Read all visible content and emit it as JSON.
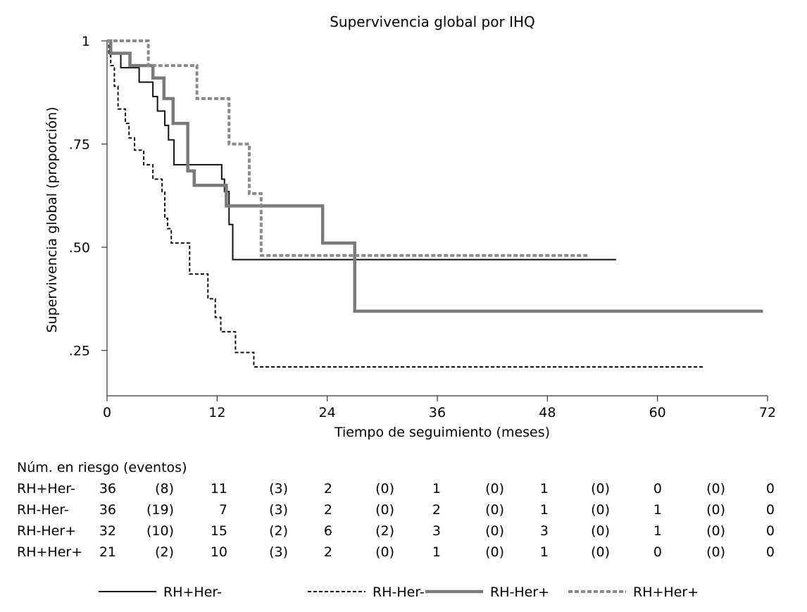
{
  "chart_data": {
    "type": "line",
    "title": "Supervivencia global por IHQ",
    "xlabel": "Tiempo de seguimiento (meses)",
    "ylabel": "Supervivencia global (proporción)",
    "xlim": [
      0,
      72
    ],
    "ylim": [
      0.14,
      1.0
    ],
    "x_ticks": [
      0,
      12,
      24,
      36,
      48,
      60,
      72
    ],
    "x_tick_labels": [
      "0",
      "12",
      "24",
      "36",
      "48",
      "60",
      "72"
    ],
    "y_ticks": [
      0.25,
      0.5,
      0.75,
      1.0
    ],
    "y_tick_labels": [
      ".25",
      ".50",
      ".75",
      "1"
    ],
    "grid": false,
    "legend_position": "bottom",
    "series": [
      {
        "name": "RH+Her-",
        "style": "solid-thin",
        "color": "#111111",
        "steps": [
          [
            0,
            1.0
          ],
          [
            0.3,
            0.97
          ],
          [
            1.5,
            0.935
          ],
          [
            3.5,
            0.9
          ],
          [
            5.0,
            0.865
          ],
          [
            5.5,
            0.83
          ],
          [
            6.3,
            0.795
          ],
          [
            6.7,
            0.76
          ],
          [
            7.3,
            0.7
          ],
          [
            12.5,
            0.665
          ],
          [
            12.8,
            0.635
          ],
          [
            13.3,
            0.555
          ],
          [
            13.7,
            0.47
          ],
          [
            55.5,
            0.47
          ]
        ]
      },
      {
        "name": "RH-Her-",
        "style": "dashed",
        "color": "#111111",
        "steps": [
          [
            0,
            1.0
          ],
          [
            0.2,
            0.97
          ],
          [
            0.4,
            0.94
          ],
          [
            0.8,
            0.89
          ],
          [
            1.2,
            0.835
          ],
          [
            2.0,
            0.8
          ],
          [
            2.4,
            0.765
          ],
          [
            3.0,
            0.735
          ],
          [
            4.0,
            0.7
          ],
          [
            5.0,
            0.665
          ],
          [
            6.0,
            0.635
          ],
          [
            6.3,
            0.57
          ],
          [
            6.6,
            0.545
          ],
          [
            7.0,
            0.51
          ],
          [
            9.0,
            0.435
          ],
          [
            11.0,
            0.375
          ],
          [
            11.8,
            0.33
          ],
          [
            12.4,
            0.295
          ],
          [
            14.0,
            0.245
          ],
          [
            16.0,
            0.21
          ],
          [
            65.0,
            0.21
          ]
        ]
      },
      {
        "name": "RH-Her+",
        "style": "solid-thick",
        "color": "#7a7a7a",
        "steps": [
          [
            0,
            1.0
          ],
          [
            0.4,
            0.97
          ],
          [
            2.5,
            0.94
          ],
          [
            5.0,
            0.91
          ],
          [
            6.2,
            0.86
          ],
          [
            7.2,
            0.8
          ],
          [
            8.8,
            0.685
          ],
          [
            9.5,
            0.65
          ],
          [
            13.0,
            0.6
          ],
          [
            23.5,
            0.51
          ],
          [
            27.0,
            0.345
          ],
          [
            71.5,
            0.345
          ]
        ]
      },
      {
        "name": "RH+Her+",
        "style": "dashed-thick",
        "color": "#8a8a8a",
        "steps": [
          [
            0,
            1.0
          ],
          [
            4.5,
            0.94
          ],
          [
            9.8,
            0.86
          ],
          [
            13.3,
            0.75
          ],
          [
            15.5,
            0.63
          ],
          [
            16.8,
            0.48
          ],
          [
            52.5,
            0.48
          ]
        ]
      }
    ]
  },
  "risk_table": {
    "header": "Núm. en riesgo (eventos)",
    "rows": [
      {
        "label": "RH+Her-",
        "values": [
          "36",
          "(8)",
          "11",
          "(3)",
          "2",
          "(0)",
          "1",
          "(0)",
          "1",
          "(0)",
          "0",
          "(0)",
          "0"
        ]
      },
      {
        "label": "RH-Her-",
        "values": [
          "36",
          "(19)",
          "7",
          "(3)",
          "2",
          "(0)",
          "2",
          "(0)",
          "1",
          "(0)",
          "1",
          "(0)",
          "0"
        ]
      },
      {
        "label": "RH-Her+",
        "values": [
          "32",
          "(10)",
          "15",
          "(2)",
          "6",
          "(2)",
          "3",
          "(0)",
          "3",
          "(0)",
          "1",
          "(0)",
          "0"
        ]
      },
      {
        "label": "RH+Her+",
        "values": [
          "21",
          "(2)",
          "10",
          "(3)",
          "2",
          "(0)",
          "1",
          "(0)",
          "1",
          "(0)",
          "0",
          "(0)",
          "0"
        ]
      }
    ]
  },
  "legend": {
    "items": [
      "RH+Her-",
      "RH-Her-",
      "RH-Her+",
      "RH+Her+"
    ]
  }
}
